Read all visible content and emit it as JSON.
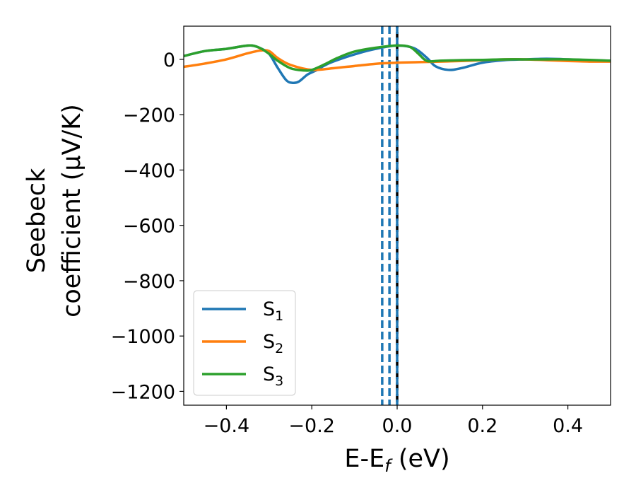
{
  "chart_data": {
    "type": "line",
    "xlabel": {
      "main": "E-E",
      "sub": "f",
      "unit": " (eV)"
    },
    "ylabel": {
      "line1": "Seebeck",
      "line2": "coefficient  (μV/K)"
    },
    "xlim": [
      -0.5,
      0.5
    ],
    "ylim": [
      -1250,
      120
    ],
    "xticks": [
      -0.4,
      -0.2,
      0.0,
      0.2,
      0.4
    ],
    "xtick_labels": [
      "−0.4",
      "−0.2",
      "0.0",
      "0.2",
      "0.4"
    ],
    "yticks": [
      0,
      -200,
      -400,
      -600,
      -800,
      -1000,
      -1200
    ],
    "ytick_labels": [
      "0",
      "−200",
      "−400",
      "−600",
      "−800",
      "−1000",
      "−1200"
    ],
    "grid": false,
    "legend_position": "lower-left",
    "series": [
      {
        "name": "S",
        "sub": "1",
        "color": "#1f77b4",
        "x": [
          -0.5,
          -0.45,
          -0.4,
          -0.36,
          -0.34,
          -0.32,
          -0.3,
          -0.28,
          -0.26,
          -0.245,
          -0.23,
          -0.21,
          -0.19,
          -0.17,
          -0.15,
          -0.1,
          -0.05,
          0.0,
          0.04,
          0.07,
          0.09,
          0.12,
          0.15,
          0.2,
          0.25,
          0.3,
          0.35,
          0.4,
          0.45,
          0.5
        ],
        "y": [
          12,
          30,
          38,
          48,
          50,
          40,
          20,
          -30,
          -75,
          -85,
          -80,
          -55,
          -40,
          -22,
          -8,
          18,
          38,
          50,
          40,
          5,
          -25,
          -38,
          -32,
          -12,
          -3,
          0,
          2,
          0,
          -3,
          -5
        ]
      },
      {
        "name": "S",
        "sub": "2",
        "color": "#ff7f0e",
        "x": [
          -0.5,
          -0.45,
          -0.4,
          -0.35,
          -0.32,
          -0.3,
          -0.28,
          -0.25,
          -0.2,
          -0.15,
          -0.1,
          -0.05,
          0.0,
          0.05,
          0.1,
          0.15,
          0.2,
          0.25,
          0.3,
          0.35,
          0.4,
          0.45,
          0.5
        ],
        "y": [
          -27,
          -15,
          0,
          22,
          32,
          30,
          5,
          -20,
          -38,
          -32,
          -24,
          -16,
          -12,
          -10,
          -8,
          -6,
          -3,
          0,
          0,
          -3,
          -6,
          -8,
          -8
        ]
      },
      {
        "name": "S",
        "sub": "3",
        "color": "#2ca02c",
        "x": [
          -0.5,
          -0.45,
          -0.4,
          -0.36,
          -0.34,
          -0.32,
          -0.3,
          -0.28,
          -0.25,
          -0.22,
          -0.2,
          -0.17,
          -0.14,
          -0.1,
          -0.05,
          0.0,
          0.03,
          0.05,
          0.07,
          0.1,
          0.15,
          0.2,
          0.25,
          0.3,
          0.35,
          0.4,
          0.45,
          0.5
        ],
        "y": [
          12,
          30,
          38,
          48,
          50,
          40,
          20,
          -5,
          -32,
          -40,
          -38,
          -18,
          5,
          28,
          42,
          50,
          45,
          20,
          -6,
          -5,
          -3,
          -2,
          0,
          0,
          0,
          0,
          -2,
          -5
        ]
      }
    ],
    "vertical_lines": [
      {
        "x": -0.035,
        "color": "#1f77b4",
        "style": "dashed"
      },
      {
        "x": -0.018,
        "color": "#1f77b4",
        "style": "dashed"
      },
      {
        "x": 0.0,
        "color": "#000000",
        "style": "dashed"
      },
      {
        "x": 0.0,
        "color": "#1f77b4",
        "style": "dashed"
      }
    ]
  }
}
